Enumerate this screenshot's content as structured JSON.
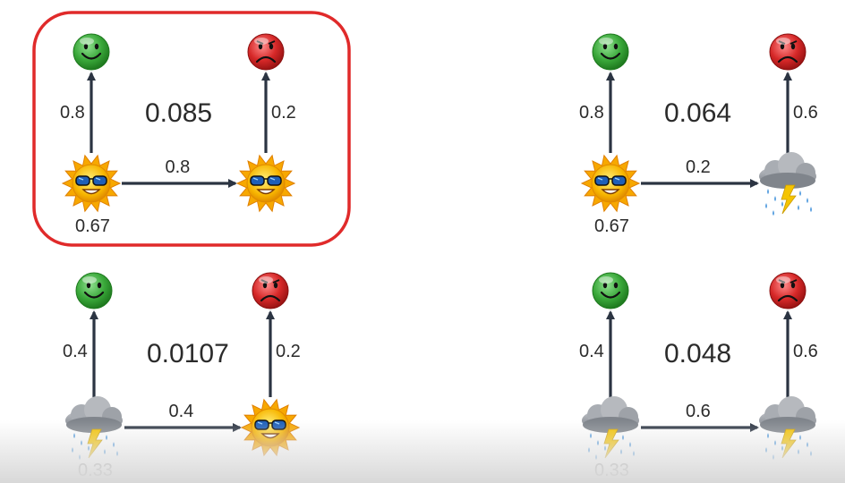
{
  "colors": {
    "arrow": "#2b3442",
    "highlight": "#e02a2a",
    "happy": "#3aa83a",
    "sad": "#d62828",
    "sun": "#f7b500",
    "cloud": "#8a8f97",
    "rain": "#5aa0e0",
    "bolt": "#f5c400"
  },
  "panels": [
    {
      "id": "sunny-sunny",
      "highlighted": true,
      "start_weather": "sun-icon",
      "end_weather": "sun-icon",
      "start_prob": "0.67",
      "transition_prob": "0.8",
      "emit_start": "0.8",
      "emit_end": "0.2",
      "joint_prob": "0.085"
    },
    {
      "id": "sunny-rainy",
      "highlighted": false,
      "start_weather": "sun-icon",
      "end_weather": "storm-cloud-icon",
      "start_prob": "0.67",
      "transition_prob": "0.2",
      "emit_start": "0.8",
      "emit_end": "0.6",
      "joint_prob": "0.064"
    },
    {
      "id": "rainy-sunny",
      "highlighted": false,
      "start_weather": "storm-cloud-icon",
      "end_weather": "sun-icon",
      "start_prob": "0.33",
      "transition_prob": "0.4",
      "emit_start": "0.4",
      "emit_end": "0.2",
      "joint_prob": "0.0107"
    },
    {
      "id": "rainy-rainy",
      "highlighted": false,
      "start_weather": "storm-cloud-icon",
      "end_weather": "storm-cloud-icon",
      "start_prob": "0.33",
      "transition_prob": "0.6",
      "emit_start": "0.4",
      "emit_end": "0.6",
      "joint_prob": "0.048"
    }
  ]
}
